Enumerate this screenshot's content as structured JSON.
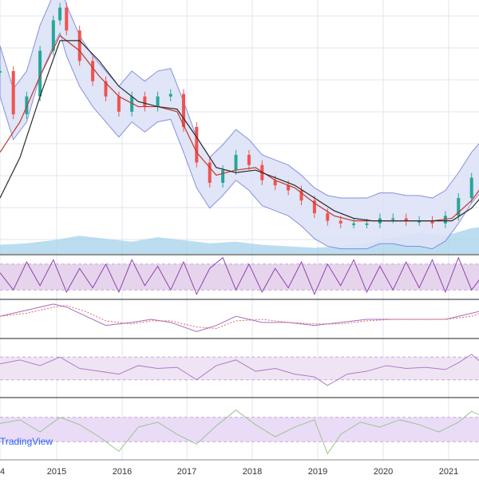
{
  "watermark": "TradingView",
  "colors": {
    "grid": "#dfe6f0",
    "up": "#26a69a",
    "down": "#ef5350",
    "bb_fill": "#dde3f7",
    "bb_line": "#7b86d8",
    "ma_dark": "#2b2b2b",
    "ma_red": "#c0392b",
    "vol_area": "#9fcfe8",
    "stoch_band": "#e6d4ec",
    "stoch_k": "#8e44ad",
    "stoch_d": "#e06666",
    "macd_line": "#a56cc1",
    "macd_signal": "#e06666",
    "rsi_band": "#efe4f4",
    "rsi_line": "#b07cc6",
    "cci_band": "#eadcf7",
    "cci_line": "#9bc48d",
    "separator": "#222222"
  },
  "chart_data": {
    "type": "line",
    "title": "",
    "xlabel": "",
    "ylabel": "",
    "x_tick_labels": [
      "4",
      "2015",
      "2016",
      "2017",
      "2018",
      "2019",
      "2020",
      "2021"
    ],
    "grid": true,
    "panes": [
      "price",
      "volume",
      "stochastic",
      "macd",
      "rsi",
      "cci"
    ],
    "series": [
      {
        "pane": "price",
        "x": [
          2014.0,
          2014.2,
          2014.4,
          2014.6,
          2014.8,
          2014.9,
          2015.0,
          2015.2,
          2015.4,
          2015.6,
          2015.8,
          2016.0,
          2016.2,
          2016.4,
          2016.6,
          2016.8,
          2017.0,
          2017.2,
          2017.4,
          2017.6,
          2017.8,
          2018.0,
          2018.2,
          2018.4,
          2018.6,
          2018.8,
          2019.0,
          2019.2,
          2019.4,
          2019.6,
          2019.8,
          2020.0,
          2020.2,
          2020.4,
          2020.6,
          2020.8,
          2021.0,
          2021.2,
          2021.4
        ],
        "values": [
          72,
          55,
          62,
          80,
          92,
          97,
          88,
          76,
          68,
          62,
          56,
          62,
          58,
          62,
          63,
          50,
          36,
          28,
          33,
          39,
          35,
          29,
          27,
          25,
          21,
          16,
          13,
          12,
          12,
          12,
          14,
          14,
          13,
          13,
          12,
          15,
          22,
          30,
          36
        ]
      },
      {
        "pane": "price",
        "x": [
          2014.0,
          2014.3,
          2014.6,
          2014.9,
          2015.2,
          2015.5,
          2015.8,
          2016.1,
          2016.4,
          2016.7,
          2017.0,
          2017.3,
          2017.6,
          2017.9,
          2018.2,
          2018.5,
          2018.8,
          2019.1,
          2019.4,
          2019.7,
          2020.0,
          2020.3,
          2020.6,
          2020.9,
          2021.2,
          2021.4
        ],
        "values": [
          40,
          52,
          70,
          86,
          80,
          70,
          62,
          58,
          58,
          56,
          40,
          31,
          33,
          34,
          29,
          26,
          20,
          15,
          13,
          13,
          13,
          13,
          13,
          14,
          21,
          28
        ]
      },
      {
        "pane": "price",
        "x": [
          2014.0,
          2014.3,
          2014.6,
          2014.9,
          2015.2,
          2015.5,
          2015.8,
          2016.1,
          2016.4,
          2016.7,
          2017.0,
          2017.3,
          2017.6,
          2017.9,
          2018.2,
          2018.5,
          2018.8,
          2019.1,
          2019.4,
          2019.7,
          2020.0,
          2020.3,
          2020.6,
          2020.9,
          2021.2,
          2021.4
        ],
        "values": [
          22,
          38,
          62,
          84,
          84,
          76,
          66,
          60,
          58,
          57,
          46,
          34,
          32,
          33,
          30,
          27,
          22,
          17,
          14,
          13,
          13,
          13,
          13,
          13,
          18,
          24
        ]
      },
      {
        "pane": "stochastic",
        "x": [
          2014.0,
          2014.2,
          2014.4,
          2014.6,
          2014.8,
          2015.0,
          2015.2,
          2015.4,
          2015.6,
          2015.8,
          2016.0,
          2016.2,
          2016.4,
          2016.6,
          2016.8,
          2017.0,
          2017.2,
          2017.4,
          2017.6,
          2017.8,
          2018.0,
          2018.2,
          2018.4,
          2018.6,
          2018.8,
          2019.0,
          2019.2,
          2019.4,
          2019.6,
          2019.8,
          2020.0,
          2020.2,
          2020.4,
          2020.6,
          2020.8,
          2021.0,
          2021.2,
          2021.4
        ],
        "values": [
          60,
          20,
          85,
          30,
          90,
          15,
          70,
          25,
          80,
          15,
          90,
          30,
          75,
          20,
          85,
          10,
          70,
          95,
          20,
          80,
          15,
          70,
          25,
          85,
          10,
          80,
          30,
          90,
          15,
          75,
          20,
          85,
          25,
          90,
          15,
          95,
          20,
          60
        ]
      },
      {
        "pane": "macd",
        "x": [
          2014.0,
          2014.4,
          2014.8,
          2015.0,
          2015.3,
          2015.6,
          2016.0,
          2016.3,
          2016.6,
          2017.0,
          2017.3,
          2017.6,
          2018.0,
          2018.4,
          2018.8,
          2019.2,
          2019.6,
          2020.0,
          2020.4,
          2020.8,
          2021.2,
          2021.4
        ],
        "values": [
          1,
          3,
          5,
          4,
          1,
          -2,
          -1,
          0,
          -1,
          -4,
          -2,
          1,
          -1,
          -1,
          -2,
          -1,
          0,
          0,
          0,
          0,
          2,
          3
        ]
      },
      {
        "pane": "rsi",
        "x": [
          2014.0,
          2014.3,
          2014.6,
          2014.9,
          2015.2,
          2015.5,
          2015.8,
          2016.1,
          2016.4,
          2016.7,
          2017.0,
          2017.3,
          2017.6,
          2017.9,
          2018.2,
          2018.5,
          2018.8,
          2019.0,
          2019.3,
          2019.6,
          2019.9,
          2020.2,
          2020.5,
          2020.8,
          2021.0,
          2021.2,
          2021.4
        ],
        "values": [
          58,
          65,
          55,
          70,
          50,
          45,
          40,
          55,
          50,
          52,
          30,
          55,
          65,
          45,
          50,
          40,
          35,
          20,
          40,
          45,
          55,
          50,
          52,
          48,
          60,
          75,
          55
        ]
      },
      {
        "pane": "cci",
        "x": [
          2014.0,
          2014.3,
          2014.6,
          2014.9,
          2015.2,
          2015.5,
          2015.8,
          2016.1,
          2016.4,
          2016.7,
          2017.0,
          2017.3,
          2017.6,
          2017.9,
          2018.2,
          2018.5,
          2018.8,
          2019.0,
          2019.2,
          2019.5,
          2019.8,
          2020.1,
          2020.4,
          2020.7,
          2021.0,
          2021.2,
          2021.4
        ],
        "values": [
          50,
          80,
          -20,
          100,
          40,
          -60,
          -180,
          20,
          60,
          -40,
          -120,
          30,
          160,
          40,
          -60,
          20,
          80,
          -200,
          -40,
          60,
          20,
          80,
          40,
          -20,
          60,
          150,
          100
        ]
      }
    ],
    "volume": {
      "x": [
        2014.0,
        2014.4,
        2014.8,
        2015.2,
        2015.6,
        2016.0,
        2016.4,
        2016.8,
        2017.2,
        2017.6,
        2018.0,
        2018.4,
        2018.8,
        2019.2,
        2019.6,
        2020.0,
        2020.4,
        2020.8,
        2021.2,
        2021.4
      ],
      "values": [
        30,
        35,
        45,
        60,
        50,
        40,
        55,
        45,
        35,
        40,
        30,
        25,
        20,
        25,
        35,
        55,
        70,
        60,
        85,
        90
      ]
    }
  }
}
